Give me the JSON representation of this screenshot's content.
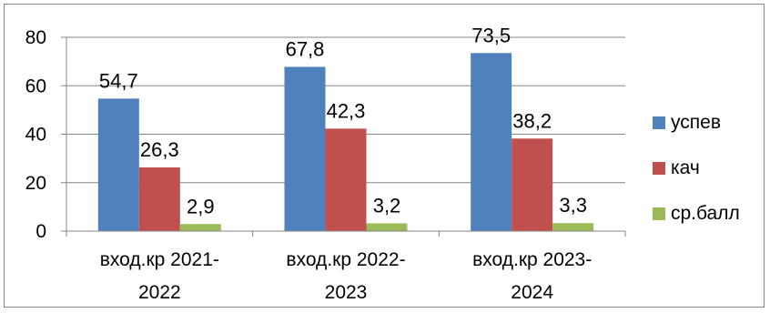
{
  "chart_data": {
    "type": "bar",
    "title": "",
    "xlabel": "",
    "ylabel": "",
    "categories": [
      [
        "вход.кр 2021-",
        "2022"
      ],
      [
        "вход.кр 2022-",
        "2023"
      ],
      [
        "вход.кр 2023-",
        "2024"
      ]
    ],
    "series": [
      {
        "name": "успев",
        "values": [
          54.7,
          67.8,
          73.5
        ],
        "labels": [
          "54,7",
          "67,8",
          "73,5"
        ],
        "color": "#4F81BD"
      },
      {
        "name": "кач",
        "values": [
          26.3,
          42.3,
          38.2
        ],
        "labels": [
          "26,3",
          "42,3",
          "38,2"
        ],
        "color": "#C0504D"
      },
      {
        "name": "ср.балл",
        "values": [
          2.9,
          3.2,
          3.3
        ],
        "labels": [
          "2,9",
          "3,2",
          "3,3"
        ],
        "color": "#9BBB59"
      }
    ],
    "ylim": [
      0,
      80
    ],
    "yticks": [
      0,
      20,
      40,
      60,
      80
    ],
    "grid": true,
    "legend_position": "right",
    "gridline_color": "#868686"
  }
}
